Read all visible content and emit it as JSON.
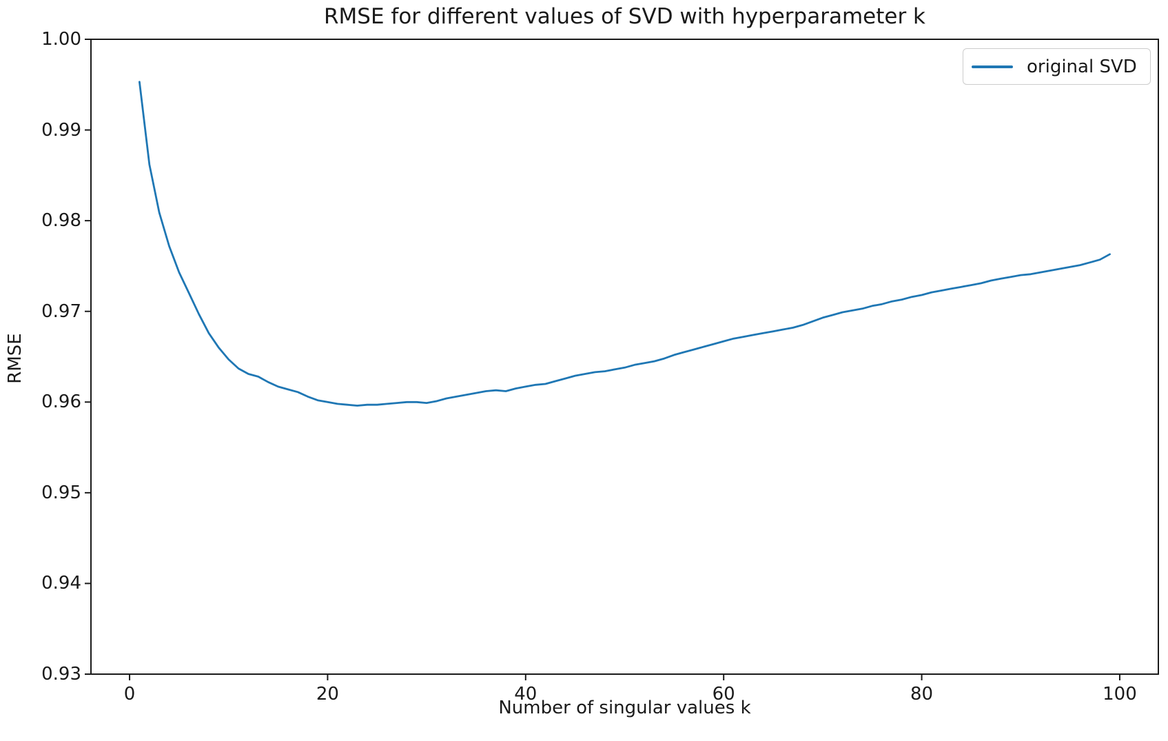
{
  "figure": {
    "background": "#ffffff",
    "text_color": "#1a1a1a",
    "spine_color": "#1a1a1a"
  },
  "chart_data": {
    "type": "line",
    "title": "RMSE for different values of SVD with hyperparameter k",
    "xlabel": "Number of singular values k",
    "ylabel": "RMSE",
    "xlim": [
      -3.9,
      103.9
    ],
    "ylim": [
      0.93,
      1.0
    ],
    "xticks": [
      0,
      20,
      40,
      60,
      80,
      100
    ],
    "xtick_labels": [
      "0",
      "20",
      "40",
      "60",
      "80",
      "100"
    ],
    "yticks": [
      1.0,
      0.99,
      0.98,
      0.97,
      0.96,
      0.95,
      0.94,
      0.93
    ],
    "ytick_labels": [
      "1.00",
      "0.99",
      "0.98",
      "0.97",
      "0.96",
      "0.95",
      "0.94",
      "0.93"
    ],
    "grid": false,
    "legend": {
      "position": "upper right",
      "entries": [
        {
          "label": "original SVD",
          "color": "#1f77b4"
        }
      ]
    },
    "x": [
      1,
      2,
      3,
      4,
      5,
      6,
      7,
      8,
      9,
      10,
      11,
      12,
      13,
      14,
      15,
      16,
      17,
      18,
      19,
      20,
      21,
      22,
      23,
      24,
      25,
      26,
      27,
      28,
      29,
      30,
      31,
      32,
      33,
      34,
      35,
      36,
      37,
      38,
      39,
      40,
      41,
      42,
      43,
      44,
      45,
      46,
      47,
      48,
      49,
      50,
      51,
      52,
      53,
      54,
      55,
      56,
      57,
      58,
      59,
      60,
      61,
      62,
      63,
      64,
      65,
      66,
      67,
      68,
      69,
      70,
      71,
      72,
      73,
      74,
      75,
      76,
      77,
      78,
      79,
      80,
      81,
      82,
      83,
      84,
      85,
      86,
      87,
      88,
      89,
      90,
      91,
      92,
      93,
      94,
      95,
      96,
      97,
      98,
      99
    ],
    "series": [
      {
        "name": "original SVD",
        "color": "#1f77b4",
        "values": [
          0.9953,
          0.9862,
          0.9809,
          0.9772,
          0.9743,
          0.972,
          0.9697,
          0.9676,
          0.966,
          0.9647,
          0.9637,
          0.9631,
          0.9628,
          0.9622,
          0.9617,
          0.9614,
          0.9611,
          0.9606,
          0.9602,
          0.96,
          0.9598,
          0.9597,
          0.9596,
          0.9597,
          0.9597,
          0.9598,
          0.9599,
          0.96,
          0.96,
          0.9599,
          0.9601,
          0.9604,
          0.9606,
          0.9608,
          0.961,
          0.9612,
          0.9613,
          0.9612,
          0.9615,
          0.9617,
          0.9619,
          0.962,
          0.9623,
          0.9626,
          0.9629,
          0.9631,
          0.9633,
          0.9634,
          0.9636,
          0.9638,
          0.9641,
          0.9643,
          0.9645,
          0.9648,
          0.9652,
          0.9655,
          0.9658,
          0.9661,
          0.9664,
          0.9667,
          0.967,
          0.9672,
          0.9674,
          0.9676,
          0.9678,
          0.968,
          0.9682,
          0.9685,
          0.9689,
          0.9693,
          0.9696,
          0.9699,
          0.9701,
          0.9703,
          0.9706,
          0.9708,
          0.9711,
          0.9713,
          0.9716,
          0.9718,
          0.9721,
          0.9723,
          0.9725,
          0.9727,
          0.9729,
          0.9731,
          0.9734,
          0.9736,
          0.9738,
          0.974,
          0.9741,
          0.9743,
          0.9745,
          0.9747,
          0.9749,
          0.9751,
          0.9754,
          0.9757,
          0.9763
        ]
      }
    ]
  }
}
